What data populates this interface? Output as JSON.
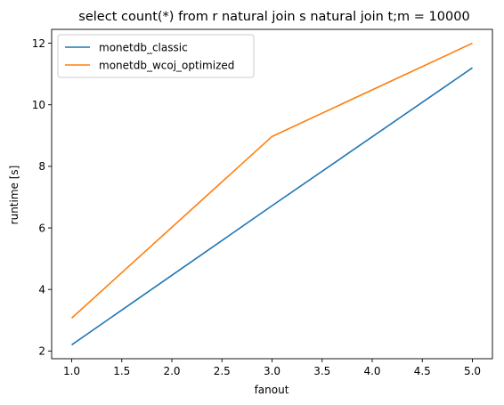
{
  "chart_data": {
    "type": "line",
    "title": "select count(*) from r natural join s natural join t;m = 10000",
    "xlabel": "fanout",
    "ylabel": "runtime [s]",
    "x": [
      1,
      3,
      5
    ],
    "xlim": [
      0.8,
      5.2
    ],
    "ylim": [
      1.75,
      12.45
    ],
    "xticks": [
      1.0,
      1.5,
      2.0,
      2.5,
      3.0,
      3.5,
      4.0,
      4.5,
      5.0
    ],
    "xtick_labels": [
      "1.0",
      "1.5",
      "2.0",
      "2.5",
      "3.0",
      "3.5",
      "4.0",
      "4.5",
      "5.0"
    ],
    "yticks": [
      2,
      4,
      6,
      8,
      10,
      12
    ],
    "ytick_labels": [
      "2",
      "4",
      "6",
      "8",
      "10",
      "12"
    ],
    "grid": false,
    "legend_position": "top-left",
    "series": [
      {
        "name": "monetdb_classic",
        "color": "#1f77b4",
        "values": [
          2.2,
          6.72,
          11.2
        ]
      },
      {
        "name": "monetdb_wcoj_optimized",
        "color": "#ff7f0e",
        "values": [
          3.07,
          8.97,
          12.0
        ]
      }
    ]
  }
}
